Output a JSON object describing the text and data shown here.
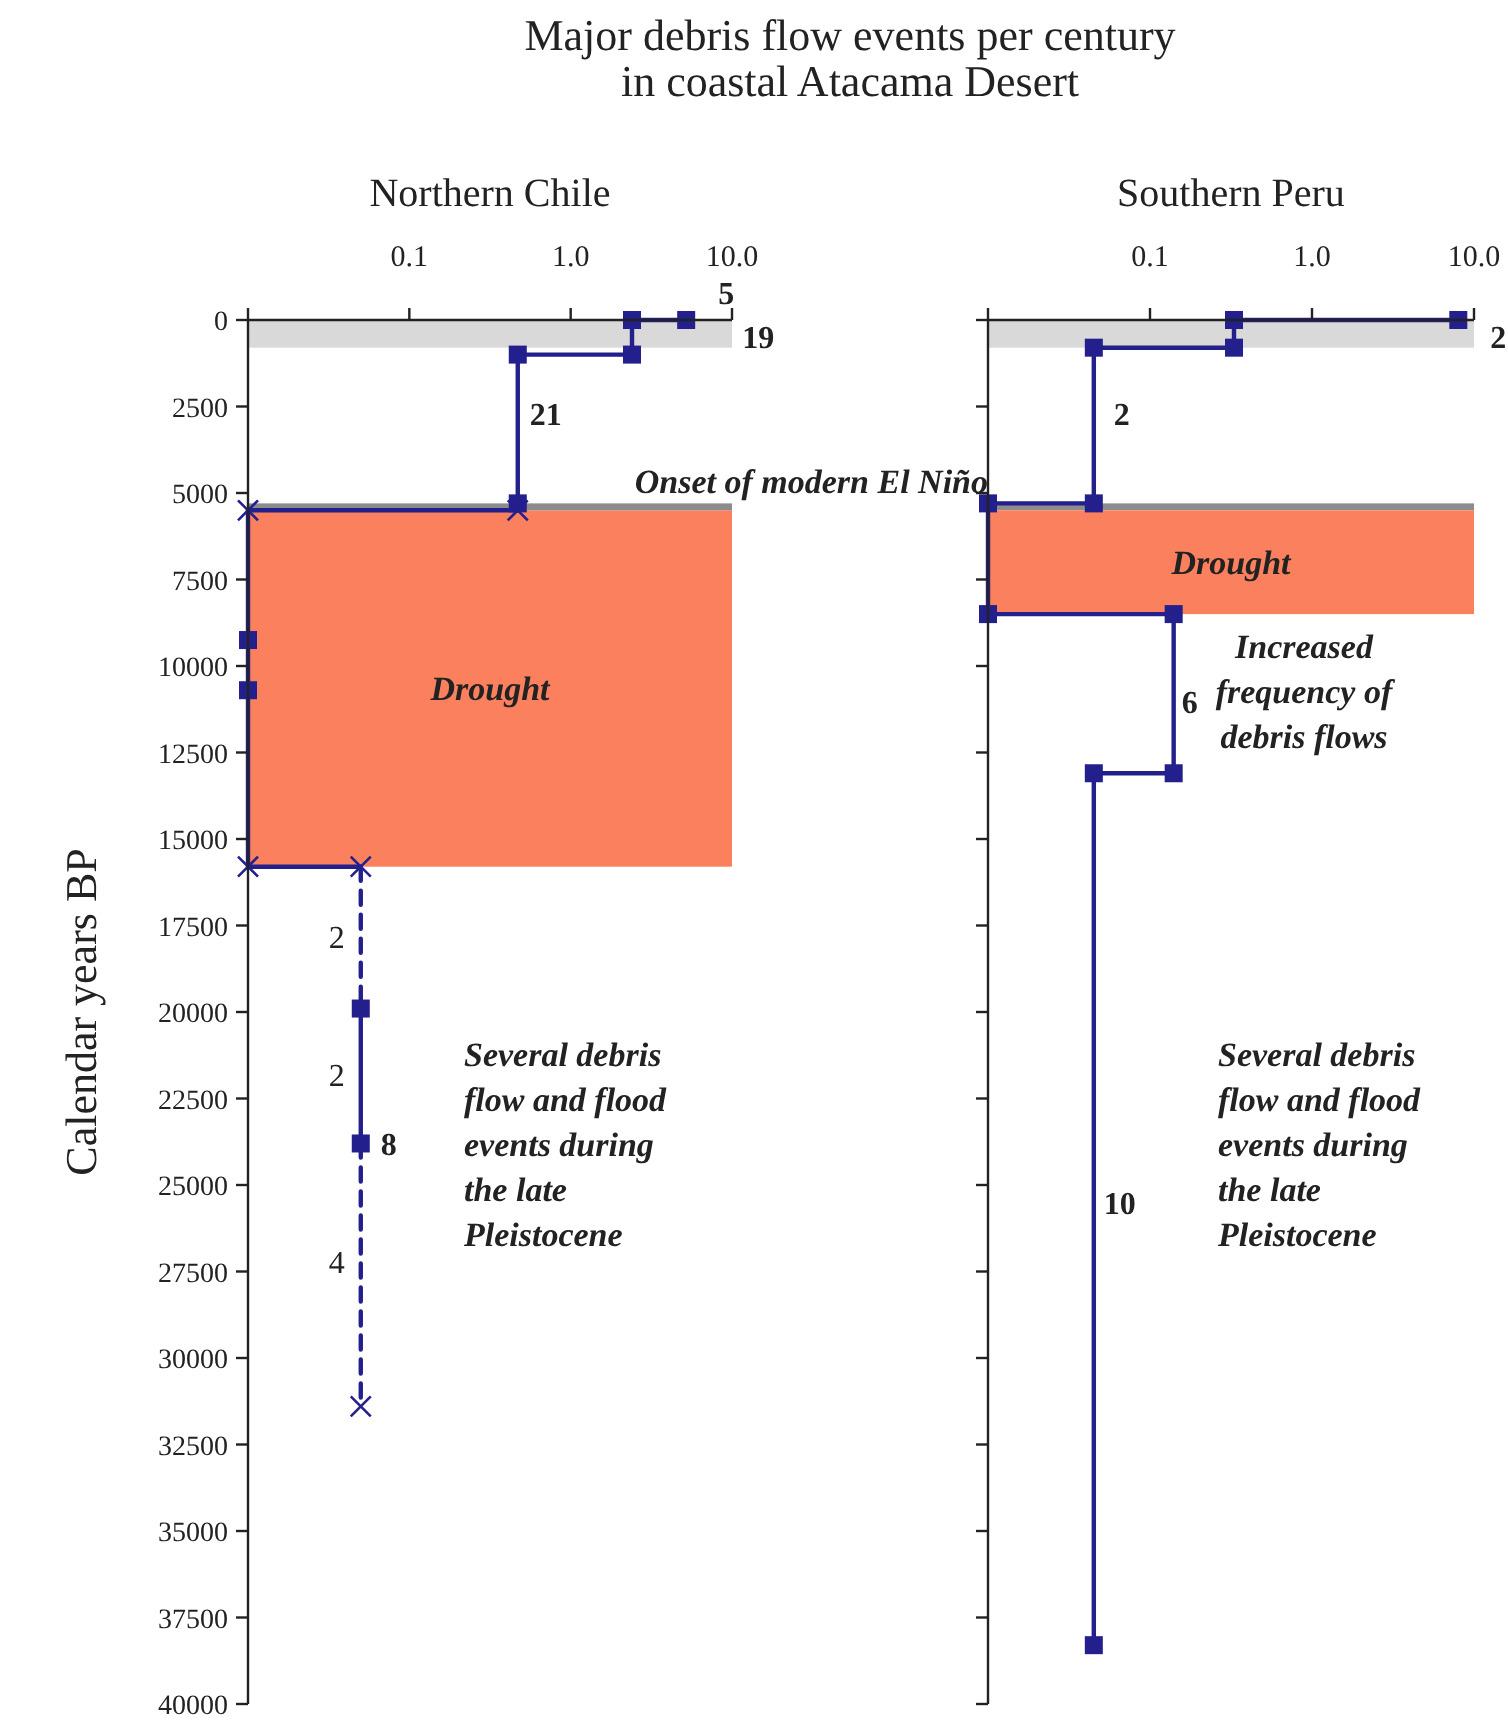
{
  "chart_data": [
    {
      "type": "line",
      "title": "Major debris flow events per century\nin coastal Atacama Desert",
      "subtitle": "Northern Chile",
      "ylabel": "Calendar years BP",
      "log": "x",
      "xlim": [
        0.01,
        10
      ],
      "xticks": [
        {
          "value": 0.01,
          "label": null
        },
        0.1,
        {
          "value": 1,
          "label": "1.0"
        },
        {
          "value": 10,
          "label": "10.0"
        }
      ],
      "ylim": [
        40000,
        0
      ],
      "yticks": [
        0,
        2500,
        5000,
        7500,
        10000,
        12500,
        15000,
        17500,
        20000,
        22500,
        25000,
        27500,
        30000,
        32500,
        35000,
        37500,
        40000
      ],
      "series": [
        {
          "color": "#231f8c",
          "marker": "square",
          "line_style": "solid",
          "x": [
            5.2,
            2.4,
            2.4,
            0.47,
            0.47
          ],
          "values": [
            0,
            0,
            1000,
            1000,
            5300
          ]
        },
        {
          "color": "#231f8c",
          "line_style": "solid",
          "x": [
            0.47,
            0.47,
            0.01,
            0.01,
            0.05
          ],
          "values": [
            5300,
            5500,
            5500,
            15800,
            15800
          ]
        },
        {
          "type": "scatter",
          "color": "#231f8c",
          "marker": "square",
          "x": [
            0.01,
            0.01
          ],
          "values": [
            9250,
            10700
          ]
        },
        {
          "color": "#231f8c",
          "line_style": "dashed",
          "x": [
            0.05,
            0.05
          ],
          "values": [
            15800,
            19900
          ]
        },
        {
          "color": "#231f8c",
          "marker": "square",
          "line_style": "solid",
          "x": [
            0.05,
            0.05
          ],
          "values": [
            19900,
            23800
          ]
        },
        {
          "color": "#231f8c",
          "line_style": "dashed",
          "x": [
            0.05,
            0.05
          ],
          "values": [
            23800,
            31400
          ]
        },
        {
          "type": "scatter",
          "color": "#231f8c",
          "marker": "cross",
          "x": [
            0.47,
            0.01,
            0.01,
            0.05,
            0.05
          ],
          "values": [
            5500,
            5500,
            15800,
            15800,
            31400
          ]
        }
      ],
      "bands": [
        {
          "axis": "y",
          "from": 0,
          "to": 800,
          "color": "#d9d9d9"
        },
        {
          "axis": "y",
          "from": 5500,
          "to": 15800,
          "color": "#fa805e",
          "label": "Drought"
        },
        {
          "axis": "y",
          "from": 5300,
          "to": 5500,
          "color": "#8c8c8c",
          "label": "Onset of modern El Niño"
        }
      ],
      "annotations": [
        {
          "text": "5",
          "x": 5.2,
          "y": 0
        },
        {
          "text": "19",
          "x": 5.2,
          "y": 0
        },
        {
          "text": "21",
          "x": 0.47,
          "y": 2700
        },
        {
          "text": "2",
          "x": 0.05,
          "y": 17800
        },
        {
          "text": "2",
          "x": 0.05,
          "y": 21800
        },
        {
          "text": "8",
          "x": 0.05,
          "y": 23800
        },
        {
          "text": "4",
          "x": 0.05,
          "y": 27200
        },
        "Several debris\nflow and flood\nevents during\nthe late\nPleistocene"
      ]
    },
    {
      "type": "line",
      "subtitle": "Southern Peru",
      "log": "x",
      "xlim": [
        0.01,
        10
      ],
      "xticks": [
        {
          "value": 0.01,
          "label": null
        },
        0.1,
        {
          "value": 1,
          "label": "1.0"
        },
        {
          "value": 10,
          "label": "10.0"
        }
      ],
      "ylim": [
        40000,
        0
      ],
      "yticks": [
        0,
        2500,
        5000,
        7500,
        10000,
        12500,
        15000,
        17500,
        20000,
        22500,
        25000,
        27500,
        30000,
        32500,
        35000,
        37500,
        40000
      ],
      "tick_labels": "x",
      "series": [
        {
          "color": "#231f8c",
          "marker": "square",
          "line_style": "solid",
          "x": [
            8,
            0.33,
            0.33,
            0.045,
            0.045,
            0.01,
            0.01,
            0.14,
            0.14,
            0.045,
            0.045
          ],
          "values": [
            0,
            0,
            800,
            800,
            5300,
            5300,
            8500,
            8500,
            13100,
            13100,
            38300
          ]
        }
      ],
      "bands": [
        {
          "axis": "y",
          "from": 0,
          "to": 800,
          "color": "#d9d9d9"
        },
        {
          "axis": "y",
          "from": 5300,
          "to": 5500,
          "color": "#8c8c8c"
        },
        {
          "axis": "y",
          "from": 5500,
          "to": 8500,
          "color": "#fa805e",
          "label": "Drought"
        }
      ],
      "annotations": [
        {
          "text": "2",
          "x": 8,
          "y": 0
        },
        {
          "text": "2",
          "x": 0.045,
          "y": 2700
        },
        {
          "text": "6",
          "x": 0.14,
          "y": 11000
        },
        "Increased\nfrequency of\ndebris flows",
        {
          "text": "10",
          "x": 0.045,
          "y": 25500
        },
        "Several debris\nflow and flood\nevents during\nthe late\nPleistocene"
      ]
    }
  ]
}
